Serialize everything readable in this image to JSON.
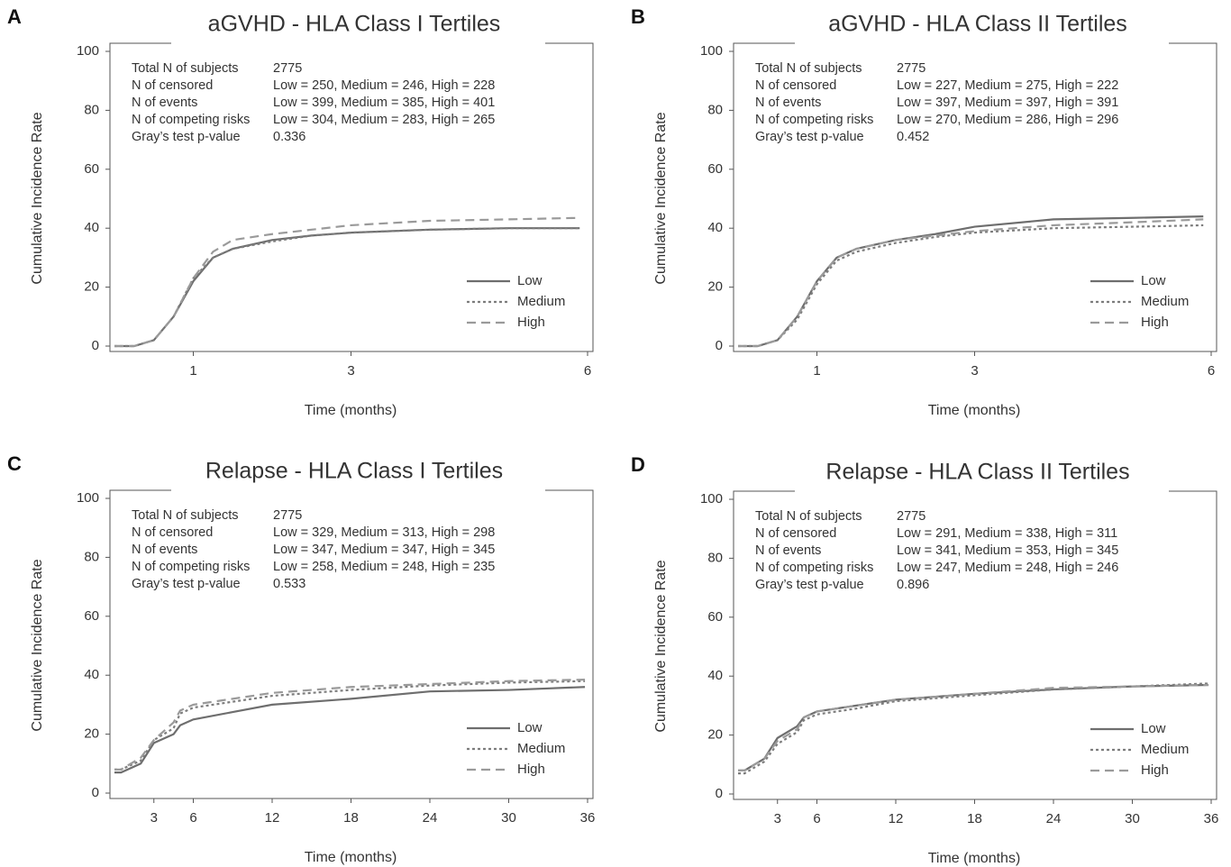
{
  "chart_data": [
    {
      "type": "line",
      "panel": "A",
      "title": "aGVHD -  HLA Class I Tertiles",
      "x_label": "Time (months)",
      "y_label": "Cumulative Incidence Rate",
      "xlim": [
        0,
        6
      ],
      "ylim": [
        0,
        100
      ],
      "xticks": [
        1,
        3,
        6
      ],
      "yticks": [
        0,
        20,
        40,
        60,
        80,
        100
      ],
      "stats": [
        {
          "label": "Total N of subjects",
          "value": 2775
        },
        {
          "label": "N of censored",
          "value": "Low = 250, Medium = 246, High = 228"
        },
        {
          "label": "N of events",
          "value": "Low = 399, Medium = 385, High = 401"
        },
        {
          "label": "N of competing risks",
          "value": "Low = 304, Medium = 283, High = 265"
        },
        {
          "label": "Gray’s test p-value",
          "value": 0.336
        }
      ],
      "x": [
        0,
        0.25,
        0.5,
        0.75,
        1,
        1.25,
        1.5,
        2,
        2.5,
        3,
        4,
        5,
        5.9
      ],
      "series": [
        {
          "name": "Low",
          "color": "#6e6e6e",
          "dash": "solid",
          "values": [
            0,
            0,
            2,
            10,
            22,
            30,
            33,
            36,
            37.5,
            38.5,
            39.5,
            40,
            40
          ]
        },
        {
          "name": "Medium",
          "color": "#7d7d7d",
          "dash": "dotted",
          "values": [
            0,
            0,
            2,
            10,
            23,
            30,
            33,
            35.5,
            37.5,
            38.5,
            39.5,
            40,
            40
          ]
        },
        {
          "name": "High",
          "color": "#9a9a9a",
          "dash": "dashed",
          "values": [
            0,
            0,
            2,
            10,
            23,
            32,
            36,
            38,
            39.5,
            41,
            42.5,
            43,
            43.5
          ]
        }
      ]
    },
    {
      "type": "line",
      "panel": "B",
      "title": "aGVHD -  HLA Class II Tertiles",
      "x_label": "Time (months)",
      "y_label": "Cumulative Incidence Rate",
      "xlim": [
        0,
        6
      ],
      "ylim": [
        0,
        100
      ],
      "xticks": [
        1,
        3,
        6
      ],
      "yticks": [
        0,
        20,
        40,
        60,
        80,
        100
      ],
      "stats": [
        {
          "label": "Total N of subjects",
          "value": 2775
        },
        {
          "label": "N of censored",
          "value": "Low = 227, Medium = 275, High = 222"
        },
        {
          "label": "N of events",
          "value": "Low = 397, Medium = 397, High = 391"
        },
        {
          "label": "N of competing risks",
          "value": "Low = 270, Medium = 286, High = 296"
        },
        {
          "label": "Gray’s test p-value",
          "value": 0.452
        }
      ],
      "x": [
        0,
        0.25,
        0.5,
        0.75,
        1,
        1.25,
        1.5,
        2,
        2.5,
        3,
        4,
        5,
        5.9
      ],
      "series": [
        {
          "name": "Low",
          "color": "#6e6e6e",
          "dash": "solid",
          "values": [
            0,
            0,
            2,
            10,
            22,
            30,
            33,
            36,
            38,
            40.5,
            43,
            43.5,
            44
          ]
        },
        {
          "name": "Medium",
          "color": "#7d7d7d",
          "dash": "dotted",
          "values": [
            0,
            0,
            2,
            9,
            21,
            29,
            32,
            35,
            37,
            38.5,
            40,
            40.5,
            41
          ]
        },
        {
          "name": "High",
          "color": "#9a9a9a",
          "dash": "dashed",
          "values": [
            0,
            0,
            2,
            10,
            22,
            30,
            33,
            36,
            37.5,
            39,
            41,
            42,
            43
          ]
        }
      ]
    },
    {
      "type": "line",
      "panel": "C",
      "title": "Relapse -  HLA Class I Tertiles",
      "x_label": "Time (months)",
      "y_label": "Cumulative Incidence Rate",
      "xlim": [
        0,
        36
      ],
      "ylim": [
        0,
        100
      ],
      "xticks": [
        3,
        6,
        12,
        18,
        24,
        30,
        36
      ],
      "yticks": [
        0,
        20,
        40,
        60,
        80,
        100
      ],
      "stats": [
        {
          "label": "Total N of subjects",
          "value": 2775
        },
        {
          "label": "N of censored",
          "value": "Low = 329, Medium = 313, High = 298"
        },
        {
          "label": "N of events",
          "value": "Low = 347, Medium = 347, High = 345"
        },
        {
          "label": "N of competing risks",
          "value": "Low = 258, Medium = 248, High = 235"
        },
        {
          "label": "Gray’s test p-value",
          "value": 0.533
        }
      ],
      "x": [
        0,
        0.5,
        2,
        3,
        4.5,
        5,
        6,
        9,
        12,
        18,
        24,
        30,
        35.8
      ],
      "series": [
        {
          "name": "Low",
          "color": "#6e6e6e",
          "dash": "solid",
          "values": [
            7,
            7,
            10,
            17,
            20,
            23,
            25,
            27.5,
            30,
            32,
            34.5,
            35,
            36
          ]
        },
        {
          "name": "Medium",
          "color": "#7d7d7d",
          "dash": "dotted",
          "values": [
            8,
            8,
            11,
            18,
            22,
            27,
            29,
            31,
            33,
            35,
            36.5,
            37.5,
            38
          ]
        },
        {
          "name": "High",
          "color": "#9a9a9a",
          "dash": "dashed",
          "values": [
            8,
            8,
            12,
            18,
            24,
            28,
            30,
            32,
            34,
            36,
            37,
            38,
            38.5
          ]
        }
      ]
    },
    {
      "type": "line",
      "panel": "D",
      "title": "Relapse -  HLA Class II Tertiles",
      "x_label": "Time (months)",
      "y_label": "Cumulative Incidence Rate",
      "xlim": [
        0,
        36
      ],
      "ylim": [
        0,
        100
      ],
      "xticks": [
        3,
        6,
        12,
        18,
        24,
        30,
        36
      ],
      "yticks": [
        0,
        20,
        40,
        60,
        80,
        100
      ],
      "stats": [
        {
          "label": "Total N of subjects",
          "value": 2775
        },
        {
          "label": "N of censored",
          "value": "Low = 291, Medium = 338, High = 311"
        },
        {
          "label": "N of events",
          "value": "Low = 341, Medium = 353, High = 345"
        },
        {
          "label": "N of competing risks",
          "value": "Low = 247, Medium = 248, High = 246"
        },
        {
          "label": "Gray’s test p-value",
          "value": 0.896
        }
      ],
      "x": [
        0,
        0.5,
        2,
        3,
        4.5,
        5,
        6,
        9,
        12,
        18,
        24,
        30,
        35.8
      ],
      "series": [
        {
          "name": "Low",
          "color": "#6e6e6e",
          "dash": "solid",
          "values": [
            8,
            8,
            12,
            19,
            23,
            26,
            28,
            30,
            32,
            34,
            35.5,
            36.5,
            37
          ]
        },
        {
          "name": "Medium",
          "color": "#7d7d7d",
          "dash": "dotted",
          "values": [
            7,
            7,
            11,
            17,
            21,
            25,
            27,
            29,
            31.5,
            33.5,
            35.5,
            36.5,
            37.5
          ]
        },
        {
          "name": "High",
          "color": "#9a9a9a",
          "dash": "dashed",
          "values": [
            8,
            8,
            12,
            18,
            22,
            26,
            28,
            30,
            32,
            34,
            36,
            36.5,
            37
          ]
        }
      ]
    }
  ]
}
